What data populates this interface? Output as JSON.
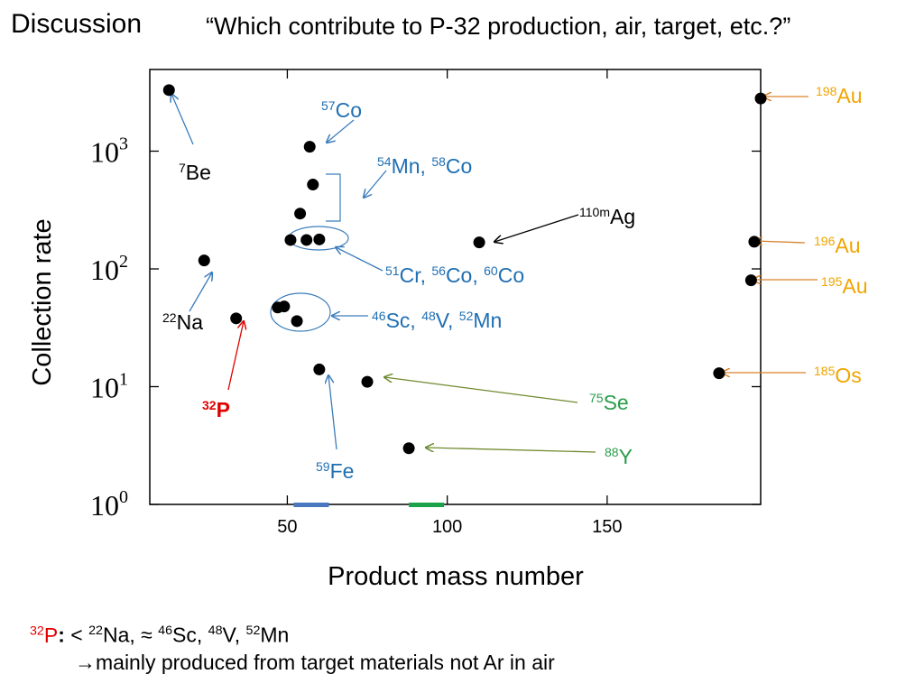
{
  "title": "Discussion",
  "question": "“Which contribute to P-32 production, air, target, etc.?”",
  "summary": {
    "p32_mass": "32",
    "p32_sym": "P",
    "colon": ":",
    "comparison": " < ",
    "na_mass": "22",
    "na_sym": "Na, ≈ ",
    "sc_mass": "46",
    "sc_sym": "Sc, ",
    "v_mass": "48",
    "v_sym": "V, ",
    "mn_mass": "52",
    "mn_sym": "Mn",
    "conclusion": "→mainly produced from target materials not Ar in air"
  },
  "colors": {
    "black": "#000000",
    "blue": "#1f6fb2",
    "red": "#e00000",
    "green": "#2a9d4a",
    "orange": "#f0a500",
    "olive": "#6e8a2e",
    "orange_arrow": "#d9822b",
    "blue_arrow": "#3c7dbb"
  },
  "chart_data": {
    "type": "scatter",
    "xlabel": "Product mass number",
    "ylabel": "Collection rate",
    "xlim": [
      7,
      198
    ],
    "ylog": true,
    "ylim_exp": [
      0,
      3.7
    ],
    "x_ticks": [
      50,
      100,
      150
    ],
    "y_ticks": [
      {
        "base": "10",
        "exp": "0",
        "value": 1
      },
      {
        "base": "10",
        "exp": "1",
        "value": 10
      },
      {
        "base": "10",
        "exp": "2",
        "value": 100
      },
      {
        "base": "10",
        "exp": "3",
        "value": 1000
      }
    ],
    "points": [
      {
        "x": 13,
        "y": 3300
      },
      {
        "x": 24,
        "y": 118
      },
      {
        "x": 34,
        "y": 38
      },
      {
        "x": 47,
        "y": 47
      },
      {
        "x": 49,
        "y": 48
      },
      {
        "x": 51,
        "y": 176
      },
      {
        "x": 53,
        "y": 36
      },
      {
        "x": 54,
        "y": 295
      },
      {
        "x": 56,
        "y": 176
      },
      {
        "x": 57,
        "y": 1090
      },
      {
        "x": 58,
        "y": 520
      },
      {
        "x": 60,
        "y": 14
      },
      {
        "x": 60,
        "y": 178
      },
      {
        "x": 75,
        "y": 11
      },
      {
        "x": 88,
        "y": 3
      },
      {
        "x": 110,
        "y": 168
      },
      {
        "x": 185,
        "y": 13
      },
      {
        "x": 195,
        "y": 80
      },
      {
        "x": 196,
        "y": 170
      },
      {
        "x": 198,
        "y": 2800
      }
    ],
    "annotations": [
      {
        "mass": "7",
        "sym": "Be",
        "color": "black"
      },
      {
        "mass": "22",
        "sym": "Na",
        "color": "black"
      },
      {
        "mass": "32",
        "sym": "P",
        "color": "red",
        "bold": true
      },
      {
        "mass": "57",
        "sym": "Co",
        "color": "blue"
      },
      {
        "mass": "54",
        "sym": "Mn, ",
        "mass2": "58",
        "sym2": "Co",
        "color": "blue"
      },
      {
        "mass": "51",
        "sym": "Cr, ",
        "mass2": "56",
        "sym2": "Co, ",
        "mass3": "60",
        "sym3": "Co",
        "color": "blue"
      },
      {
        "mass": "46",
        "sym": "Sc, ",
        "mass2": "48",
        "sym2": "V, ",
        "mass3": "52",
        "sym3": "Mn",
        "color": "blue"
      },
      {
        "mass": "59",
        "sym": "Fe",
        "color": "blue"
      },
      {
        "mass": "110m",
        "sym": "Ag",
        "color": "black"
      },
      {
        "mass": "75",
        "sym": "Se",
        "color": "green"
      },
      {
        "mass": "88",
        "sym": "Y",
        "color": "green"
      },
      {
        "mass": "198",
        "sym": "Au",
        "color": "orange"
      },
      {
        "mass": "196",
        "sym": "Au",
        "color": "orange"
      },
      {
        "mass": "195",
        "sym": "Au",
        "color": "orange"
      },
      {
        "mass": "185",
        "sym": "Os",
        "color": "orange"
      }
    ],
    "x_bands": [
      {
        "from": 52,
        "to": 63,
        "color": "blue"
      },
      {
        "from": 88,
        "to": 99,
        "color": "green"
      }
    ]
  }
}
